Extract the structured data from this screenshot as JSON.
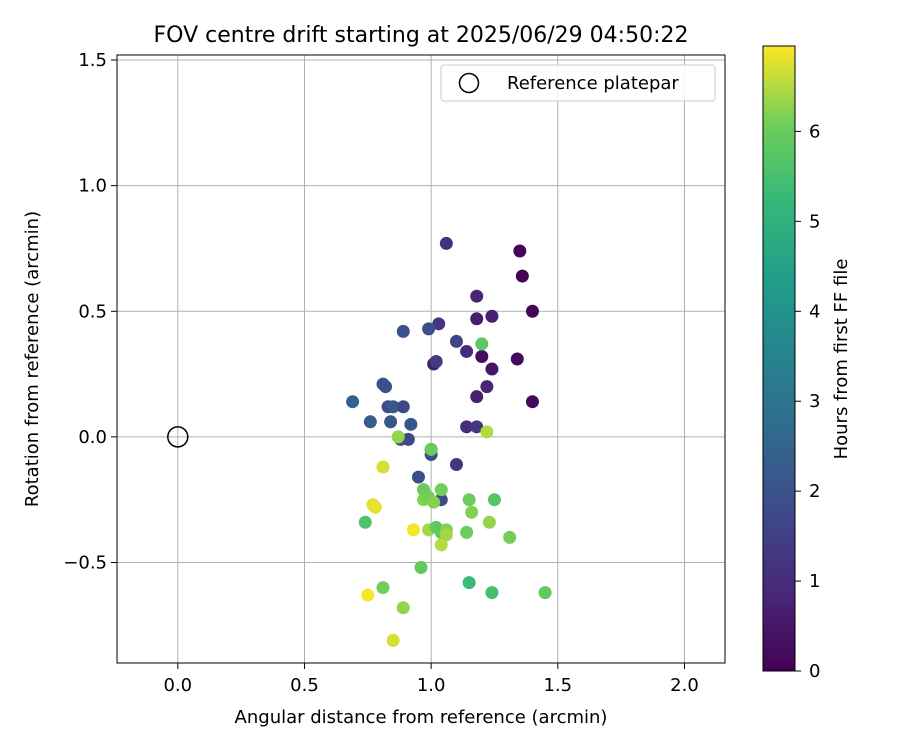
{
  "chart_data": {
    "type": "scatter",
    "title": "FOV centre drift starting at 2025/06/29 04:50:22",
    "xlabel": "Angular distance from reference (arcmin)",
    "ylabel": "Rotation from reference (arcmin)",
    "xlim": [
      -0.24,
      2.16
    ],
    "ylim": [
      -0.9,
      1.52
    ],
    "xticks": [
      0.0,
      0.5,
      1.0,
      1.5,
      2.0
    ],
    "xtick_labels": [
      "0.0",
      "0.5",
      "1.0",
      "1.5",
      "2.0"
    ],
    "yticks": [
      -0.5,
      0.0,
      0.5,
      1.0,
      1.5
    ],
    "ytick_labels": [
      "−0.5",
      "0.0",
      "0.5",
      "1.0",
      "1.5"
    ],
    "grid": true,
    "legend": {
      "placement": "top-right",
      "entries": [
        "Reference platepar"
      ]
    },
    "reference_point": {
      "x": 0.0,
      "y": 0.0,
      "label": "Reference platepar"
    },
    "colorbar": {
      "label": "Hours from first FF file",
      "colormap": "viridis",
      "range": [
        0,
        6.95
      ],
      "ticks": [
        0,
        1,
        2,
        3,
        4,
        5,
        6
      ],
      "tick_labels": [
        "0",
        "1",
        "2",
        "3",
        "4",
        "5",
        "6"
      ]
    },
    "points": [
      {
        "x": 1.35,
        "y": 0.74,
        "h": 0.1
      },
      {
        "x": 1.36,
        "y": 0.64,
        "h": 0.1
      },
      {
        "x": 1.4,
        "y": 0.5,
        "h": 0.1
      },
      {
        "x": 1.34,
        "y": 0.31,
        "h": 0.2
      },
      {
        "x": 1.4,
        "y": 0.14,
        "h": 0.2
      },
      {
        "x": 1.06,
        "y": 0.77,
        "h": 1.1
      },
      {
        "x": 1.18,
        "y": 0.56,
        "h": 0.8
      },
      {
        "x": 1.24,
        "y": 0.48,
        "h": 0.7
      },
      {
        "x": 1.18,
        "y": 0.47,
        "h": 0.6
      },
      {
        "x": 1.2,
        "y": 0.32,
        "h": 0.3
      },
      {
        "x": 1.24,
        "y": 0.27,
        "h": 0.5
      },
      {
        "x": 1.22,
        "y": 0.2,
        "h": 0.8
      },
      {
        "x": 1.18,
        "y": 0.16,
        "h": 0.7
      },
      {
        "x": 1.14,
        "y": 0.34,
        "h": 1.0
      },
      {
        "x": 1.01,
        "y": 0.29,
        "h": 0.6
      },
      {
        "x": 1.03,
        "y": 0.45,
        "h": 1.2
      },
      {
        "x": 1.02,
        "y": 0.3,
        "h": 1.4
      },
      {
        "x": 1.1,
        "y": 0.38,
        "h": 1.6
      },
      {
        "x": 1.14,
        "y": 0.04,
        "h": 1.0
      },
      {
        "x": 1.18,
        "y": 0.04,
        "h": 1.3
      },
      {
        "x": 1.1,
        "y": -0.11,
        "h": 1.2
      },
      {
        "x": 0.89,
        "y": 0.42,
        "h": 2.0
      },
      {
        "x": 0.99,
        "y": 0.43,
        "h": 1.9
      },
      {
        "x": 0.81,
        "y": 0.21,
        "h": 1.9
      },
      {
        "x": 0.82,
        "y": 0.2,
        "h": 2.0
      },
      {
        "x": 0.83,
        "y": 0.12,
        "h": 1.8
      },
      {
        "x": 0.85,
        "y": 0.12,
        "h": 2.2
      },
      {
        "x": 0.89,
        "y": 0.12,
        "h": 1.7
      },
      {
        "x": 0.69,
        "y": 0.14,
        "h": 2.4
      },
      {
        "x": 0.76,
        "y": 0.06,
        "h": 2.3
      },
      {
        "x": 0.84,
        "y": 0.06,
        "h": 2.1
      },
      {
        "x": 0.92,
        "y": 0.05,
        "h": 2.1
      },
      {
        "x": 0.88,
        "y": -0.01,
        "h": 1.9
      },
      {
        "x": 0.91,
        "y": -0.01,
        "h": 1.7
      },
      {
        "x": 1.0,
        "y": -0.05,
        "h": 2.0
      },
      {
        "x": 1.0,
        "y": -0.07,
        "h": 1.8
      },
      {
        "x": 0.95,
        "y": -0.16,
        "h": 1.9
      },
      {
        "x": 1.04,
        "y": -0.25,
        "h": 1.8
      },
      {
        "x": 1.2,
        "y": 0.37,
        "h": 5.8
      },
      {
        "x": 1.22,
        "y": 0.02,
        "h": 6.5
      },
      {
        "x": 0.87,
        "y": 0.0,
        "h": 6.3
      },
      {
        "x": 1.0,
        "y": -0.05,
        "h": 6.0
      },
      {
        "x": 0.81,
        "y": -0.12,
        "h": 6.7
      },
      {
        "x": 0.97,
        "y": -0.21,
        "h": 6.0
      },
      {
        "x": 0.97,
        "y": -0.25,
        "h": 6.2
      },
      {
        "x": 0.99,
        "y": -0.24,
        "h": 6.1
      },
      {
        "x": 1.01,
        "y": -0.26,
        "h": 6.2
      },
      {
        "x": 1.04,
        "y": -0.21,
        "h": 6.1
      },
      {
        "x": 0.77,
        "y": -0.27,
        "h": 6.8
      },
      {
        "x": 0.78,
        "y": -0.28,
        "h": 6.8
      },
      {
        "x": 0.74,
        "y": -0.34,
        "h": 5.6
      },
      {
        "x": 0.93,
        "y": -0.37,
        "h": 6.9
      },
      {
        "x": 0.99,
        "y": -0.37,
        "h": 6.4
      },
      {
        "x": 1.02,
        "y": -0.36,
        "h": 5.9
      },
      {
        "x": 1.04,
        "y": -0.38,
        "h": 5.8
      },
      {
        "x": 1.06,
        "y": -0.37,
        "h": 6.2
      },
      {
        "x": 1.06,
        "y": -0.39,
        "h": 6.4
      },
      {
        "x": 1.04,
        "y": -0.43,
        "h": 6.5
      },
      {
        "x": 1.15,
        "y": -0.25,
        "h": 6.0
      },
      {
        "x": 1.16,
        "y": -0.3,
        "h": 6.2
      },
      {
        "x": 1.25,
        "y": -0.25,
        "h": 5.7
      },
      {
        "x": 1.23,
        "y": -0.34,
        "h": 6.3
      },
      {
        "x": 1.14,
        "y": -0.38,
        "h": 6.0
      },
      {
        "x": 1.31,
        "y": -0.4,
        "h": 6.1
      },
      {
        "x": 0.96,
        "y": -0.52,
        "h": 5.9
      },
      {
        "x": 1.15,
        "y": -0.58,
        "h": 5.3
      },
      {
        "x": 1.24,
        "y": -0.62,
        "h": 5.5
      },
      {
        "x": 1.45,
        "y": -0.62,
        "h": 5.9
      },
      {
        "x": 0.81,
        "y": -0.6,
        "h": 6.1
      },
      {
        "x": 0.75,
        "y": -0.63,
        "h": 6.9
      },
      {
        "x": 0.89,
        "y": -0.68,
        "h": 6.3
      },
      {
        "x": 0.85,
        "y": -0.81,
        "h": 6.7
      }
    ]
  }
}
